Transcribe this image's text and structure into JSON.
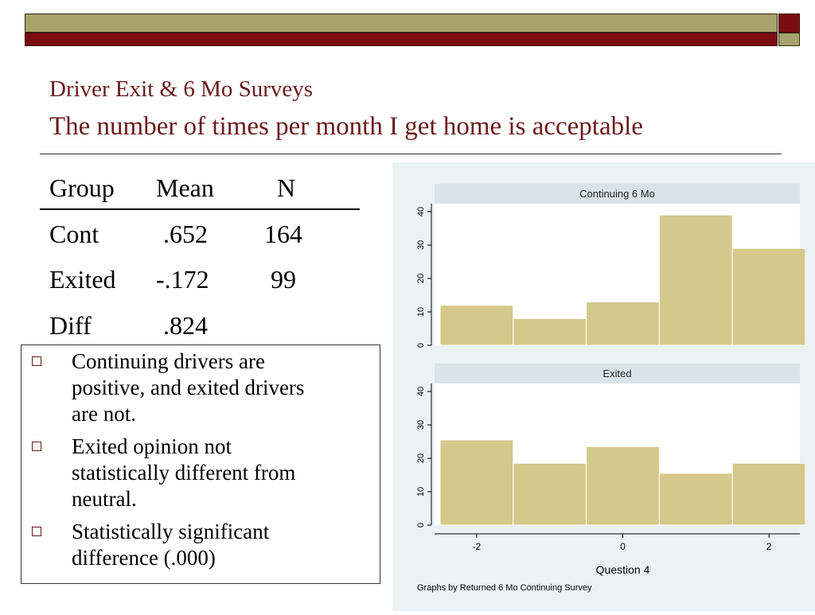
{
  "slide": {
    "title_line1": "Driver Exit & 6 Mo Surveys",
    "title_line2": "The number of times per month I get home is acceptable",
    "accent_colors": {
      "olive": "#a8a26c",
      "maroon": "#7a0d12",
      "title": "#6b1a1a"
    }
  },
  "table": {
    "headers": [
      "Group",
      "Mean",
      "N"
    ],
    "rows": [
      {
        "group": "Cont",
        "mean": ".652",
        "n": "164"
      },
      {
        "group": "Exited",
        "mean": "-.172",
        "n": "99"
      },
      {
        "group": "Diff",
        "mean": ".824",
        "n": ""
      }
    ]
  },
  "bullets": [
    [
      "Continuing drivers are",
      "positive, and exited drivers",
      "are not."
    ],
    [
      "Exited opinion not",
      "statistically different from",
      "neutral."
    ],
    [
      "Statistically significant",
      "difference (.000)"
    ]
  ],
  "chart_data": {
    "type": "bar",
    "xlabel": "Question 4",
    "ylabel": "",
    "note": "Graphs by Returned 6 Mo Continuing Survey",
    "x_ticks": [
      -2,
      0,
      2
    ],
    "y_ticks": [
      0,
      10,
      20,
      30,
      40
    ],
    "ylim": [
      0,
      40
    ],
    "xlim": [
      -2.5,
      2.5
    ],
    "bar_color": "#d4c98a",
    "panel_header_color": "#d9e4ea",
    "bins": [
      [
        -2.5,
        -1.5
      ],
      [
        -1.5,
        -0.5
      ],
      [
        -0.5,
        0.5
      ],
      [
        0.5,
        1.5
      ],
      [
        1.5,
        2.5
      ]
    ],
    "series": [
      {
        "name": "Continuing 6 Mo",
        "values": [
          12,
          8,
          13,
          39,
          29
        ]
      },
      {
        "name": "Exited",
        "values": [
          25.5,
          18.5,
          23.5,
          15.5,
          18.5
        ]
      }
    ]
  }
}
